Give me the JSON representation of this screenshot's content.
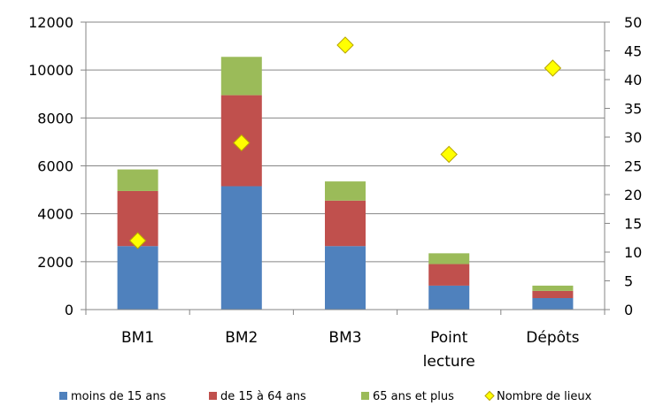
{
  "chart_data": {
    "type": "bar",
    "stacked": true,
    "categories": [
      "BM1",
      "BM2",
      "BM3",
      "Point lecture",
      "Dépôts"
    ],
    "series": [
      {
        "name": "moins de 15 ans",
        "values": [
          2650,
          5150,
          2650,
          1000,
          480
        ],
        "color": "#4f81bd"
      },
      {
        "name": "de 15 à 64 ans",
        "values": [
          2300,
          3800,
          1900,
          900,
          300
        ],
        "color": "#c0504d"
      },
      {
        "name": "65 ans et plus",
        "values": [
          900,
          1600,
          800,
          450,
          220
        ],
        "color": "#9bbb59"
      }
    ],
    "secondary_series": {
      "name": "Nombre de lieux",
      "type": "scatter",
      "marker": "diamond",
      "values": [
        12,
        29,
        46,
        27,
        42
      ],
      "color": "#ffff00"
    },
    "y_ticks": [
      "0",
      "2000",
      "4000",
      "6000",
      "8000",
      "10000",
      "12000"
    ],
    "y2_ticks": [
      "0",
      "5",
      "10",
      "15",
      "20",
      "25",
      "30",
      "35",
      "40",
      "45",
      "50"
    ],
    "ylim": [
      0,
      12000
    ],
    "y2lim": [
      0,
      50
    ],
    "grid": true,
    "legend_position": "bottom"
  }
}
